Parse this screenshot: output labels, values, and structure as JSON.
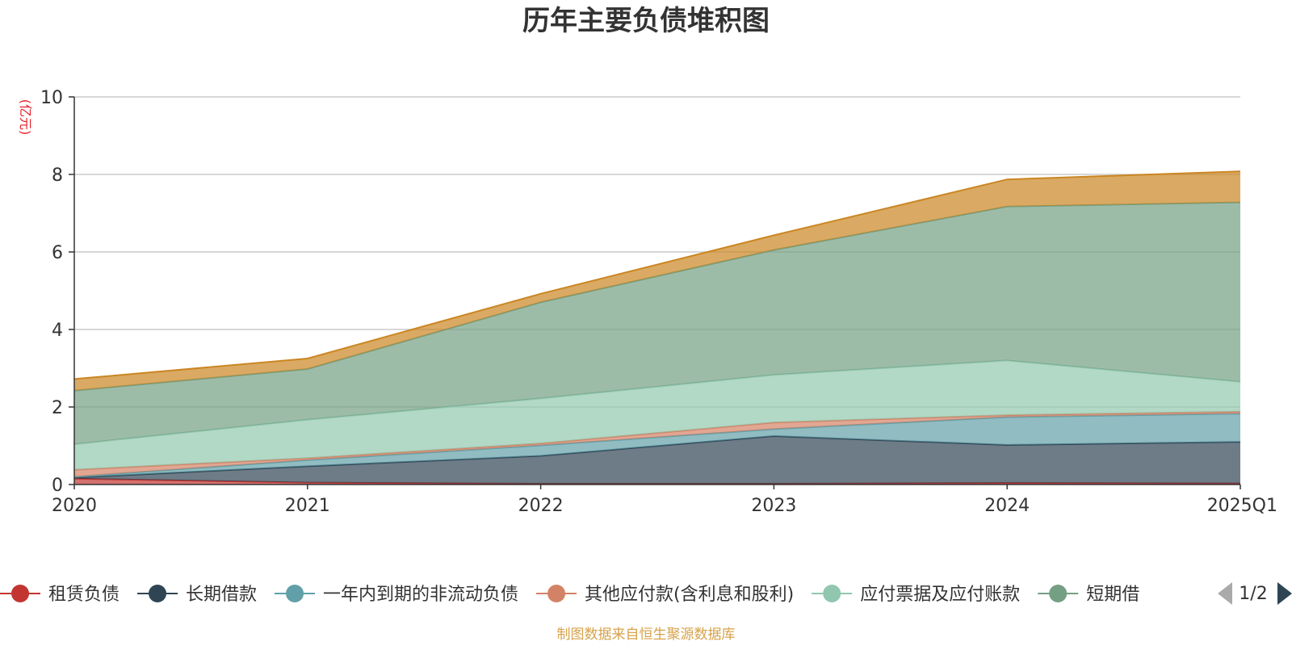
{
  "chart_data": {
    "type": "area",
    "stacked": true,
    "title": "历年主要负债堆积图",
    "unit_label": "(亿元)",
    "categories": [
      "2020",
      "2021",
      "2022",
      "2023",
      "2024",
      "2025Q1"
    ],
    "ylim": [
      0,
      10
    ],
    "yticks": [
      "0",
      "2",
      "4",
      "6",
      "8",
      "10"
    ],
    "grid": true,
    "series": [
      {
        "name": "租赁负债",
        "color": "#c23531",
        "values": [
          0.15,
          0.05,
          0.02,
          0.02,
          0.04,
          0.03
        ]
      },
      {
        "name": "长期借款",
        "color": "#2f4554",
        "values": [
          0.03,
          0.42,
          0.72,
          1.23,
          0.98,
          1.07
        ]
      },
      {
        "name": "一年内到期的非流动负债",
        "color": "#61a0a8",
        "values": [
          0.02,
          0.16,
          0.27,
          0.18,
          0.72,
          0.73
        ]
      },
      {
        "name": "其他应付款(含利息和股利)",
        "color": "#d48265",
        "values": [
          0.18,
          0.05,
          0.05,
          0.17,
          0.05,
          0.05
        ]
      },
      {
        "name": "应付票据及应付账款",
        "color": "#91c7ae",
        "values": [
          0.66,
          0.99,
          1.16,
          1.23,
          1.41,
          0.77
        ]
      },
      {
        "name": "短期借款",
        "color": "#749f83",
        "values": [
          1.38,
          1.31,
          2.48,
          3.22,
          3.97,
          4.63
        ]
      },
      {
        "color": "#ca8622",
        "values": [
          0.3,
          0.27,
          0.22,
          0.38,
          0.7,
          0.8
        ]
      }
    ]
  },
  "legend": {
    "items": [
      "租赁负债",
      "长期借款",
      "一年内到期的非流动负债",
      "其他应付款(含利息和股利)",
      "应付票据及应付账款",
      "短期借"
    ],
    "page": "1/2"
  },
  "source": "制图数据来自恒生聚源数据库"
}
